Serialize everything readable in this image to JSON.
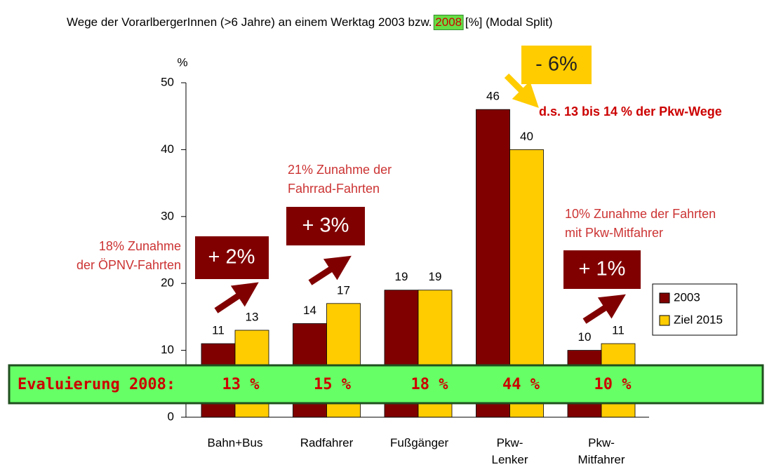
{
  "chart_data": {
    "type": "bar",
    "title": "Wege der VorarlbergerInnen (>6 Jahre) an einem Werktag 2003 bzw.",
    "title_highlight": "2008",
    "title_end": "[%] (Modal Split)",
    "y_label": "%",
    "categories": [
      "Bahn+Bus",
      "Radfahrer",
      "Fußgänger",
      "Pkw-Lenker",
      "Pkw-Mitfahrer"
    ],
    "series": [
      {
        "name": "2003",
        "color": "#800000",
        "values": [
          11,
          14,
          19,
          46,
          10
        ]
      },
      {
        "name": "Ziel 2015",
        "color": "#ffcc00",
        "values": [
          13,
          17,
          19,
          40,
          11
        ]
      }
    ],
    "ylim": [
      0,
      50
    ],
    "yticks": [
      0,
      10,
      20,
      30,
      40,
      50
    ],
    "legend": "right",
    "annotations": {
      "oepnv": [
        "18% Zunahme",
        "der ÖPNV-Fahrten"
      ],
      "oepnv_box": "+ 2%",
      "rad": [
        "21% Zunahme der",
        "Fahrrad-Fahrten"
      ],
      "rad_box": "+ 3%",
      "mitfahrer": [
        "10% Zunahme der Fahrten",
        "mit Pkw-Mitfahrer"
      ],
      "mitfahrer_box": "+ 1%",
      "pkw_box": "- 6%",
      "pkw": "d.s. 13 bis 14 % der Pkw-Wege"
    },
    "evaluation": {
      "label": "Evaluierung 2008:",
      "values": [
        "13 %",
        "15 %",
        "18 %",
        "44 %",
        "10 %"
      ]
    }
  }
}
